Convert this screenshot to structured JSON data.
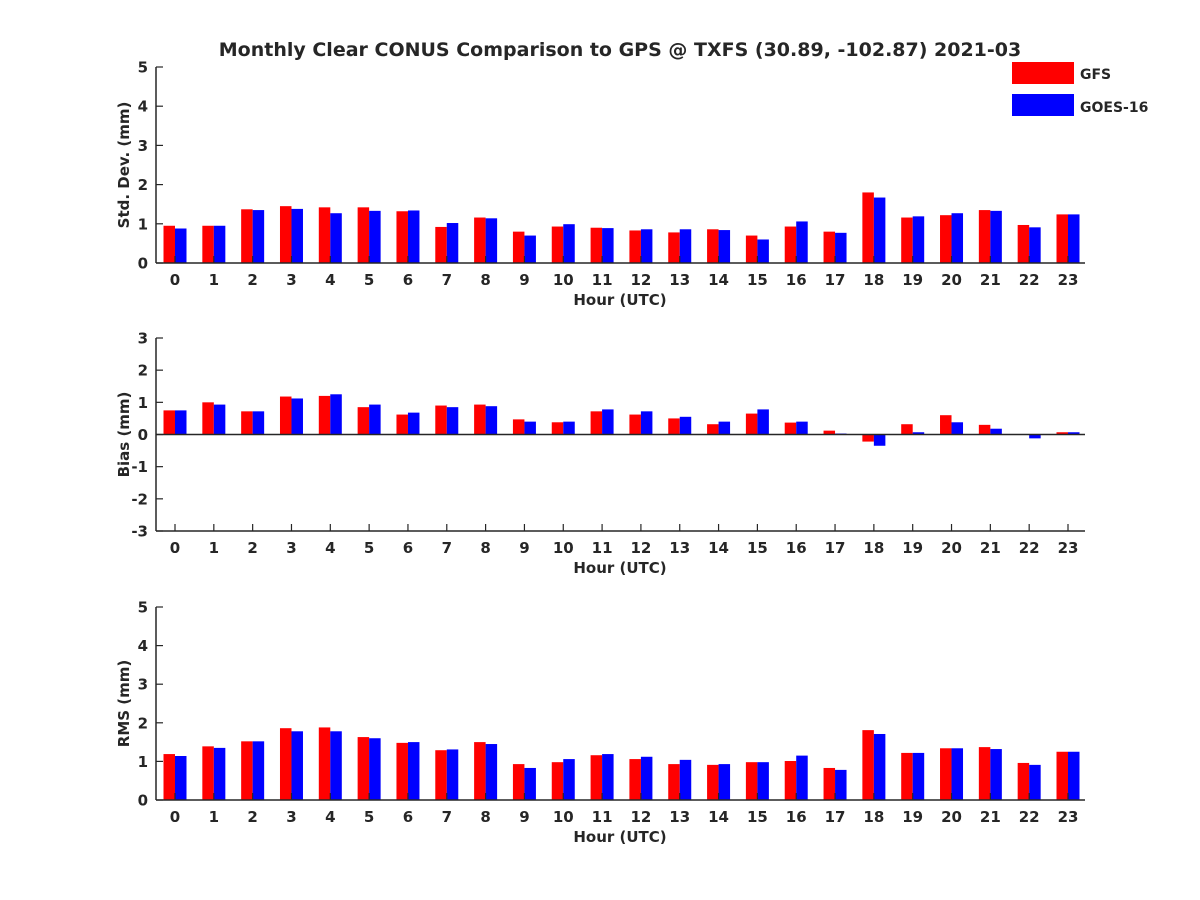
{
  "title": "Monthly Clear CONUS Comparison to GPS @ TXFS (30.89, -102.87) 2021-03",
  "legend": {
    "placement": "top-right",
    "entries": [
      {
        "name": "GFS",
        "color": "#ff0000"
      },
      {
        "name": "GOES-16",
        "color": "#0000ff"
      }
    ]
  },
  "chart_data": [
    {
      "type": "bar",
      "xlabel": "Hour (UTC)",
      "ylabel": "Std. Dev. (mm)",
      "ylim": [
        0,
        5
      ],
      "yticks": [
        0,
        1,
        2,
        3,
        4,
        5
      ],
      "grid": false,
      "categories": [
        "0",
        "1",
        "2",
        "3",
        "4",
        "5",
        "6",
        "7",
        "8",
        "9",
        "10",
        "11",
        "12",
        "13",
        "14",
        "15",
        "16",
        "17",
        "18",
        "19",
        "20",
        "21",
        "22",
        "23"
      ],
      "series": [
        {
          "name": "GFS",
          "color": "#ff0000",
          "values": [
            0.95,
            0.95,
            1.37,
            1.45,
            1.42,
            1.42,
            1.32,
            0.92,
            1.16,
            0.8,
            0.93,
            0.9,
            0.83,
            0.78,
            0.86,
            0.7,
            0.93,
            0.8,
            1.8,
            1.16,
            1.22,
            1.35,
            0.97,
            1.24
          ]
        },
        {
          "name": "GOES-16",
          "color": "#0000ff",
          "values": [
            0.88,
            0.95,
            1.35,
            1.38,
            1.27,
            1.33,
            1.34,
            1.02,
            1.14,
            0.7,
            0.99,
            0.89,
            0.86,
            0.86,
            0.84,
            0.6,
            1.06,
            0.77,
            1.67,
            1.19,
            1.27,
            1.33,
            0.91,
            1.24
          ]
        }
      ]
    },
    {
      "type": "bar",
      "xlabel": "Hour (UTC)",
      "ylabel": "Bias (mm)",
      "ylim": [
        -3,
        3
      ],
      "yticks": [
        -3,
        -2,
        -1,
        0,
        1,
        2,
        3
      ],
      "grid": false,
      "categories": [
        "0",
        "1",
        "2",
        "3",
        "4",
        "5",
        "6",
        "7",
        "8",
        "9",
        "10",
        "11",
        "12",
        "13",
        "14",
        "15",
        "16",
        "17",
        "18",
        "19",
        "20",
        "21",
        "22",
        "23"
      ],
      "series": [
        {
          "name": "GFS",
          "color": "#ff0000",
          "values": [
            0.75,
            1.0,
            0.72,
            1.18,
            1.2,
            0.85,
            0.62,
            0.9,
            0.93,
            0.47,
            0.38,
            0.72,
            0.62,
            0.5,
            0.32,
            0.65,
            0.37,
            0.12,
            -0.22,
            0.32,
            0.6,
            0.3,
            0.0,
            0.07
          ]
        },
        {
          "name": "GOES-16",
          "color": "#0000ff",
          "values": [
            0.75,
            0.93,
            0.72,
            1.12,
            1.25,
            0.93,
            0.68,
            0.85,
            0.88,
            0.4,
            0.4,
            0.78,
            0.72,
            0.55,
            0.4,
            0.78,
            0.4,
            0.03,
            -0.35,
            0.07,
            0.38,
            0.18,
            -0.12,
            0.07
          ]
        }
      ]
    },
    {
      "type": "bar",
      "xlabel": "Hour (UTC)",
      "ylabel": "RMS (mm)",
      "ylim": [
        0,
        5
      ],
      "yticks": [
        0,
        1,
        2,
        3,
        4,
        5
      ],
      "grid": false,
      "categories": [
        "0",
        "1",
        "2",
        "3",
        "4",
        "5",
        "6",
        "7",
        "8",
        "9",
        "10",
        "11",
        "12",
        "13",
        "14",
        "15",
        "16",
        "17",
        "18",
        "19",
        "20",
        "21",
        "22",
        "23"
      ],
      "series": [
        {
          "name": "GFS",
          "color": "#ff0000",
          "values": [
            1.19,
            1.39,
            1.52,
            1.86,
            1.88,
            1.63,
            1.48,
            1.29,
            1.5,
            0.93,
            0.98,
            1.16,
            1.06,
            0.93,
            0.91,
            0.98,
            1.01,
            0.83,
            1.81,
            1.22,
            1.34,
            1.37,
            0.96,
            1.25
          ]
        },
        {
          "name": "GOES-16",
          "color": "#0000ff",
          "values": [
            1.14,
            1.35,
            1.52,
            1.78,
            1.78,
            1.6,
            1.5,
            1.31,
            1.45,
            0.83,
            1.06,
            1.19,
            1.12,
            1.04,
            0.93,
            0.98,
            1.15,
            0.78,
            1.71,
            1.22,
            1.34,
            1.32,
            0.91,
            1.25
          ]
        }
      ]
    }
  ]
}
